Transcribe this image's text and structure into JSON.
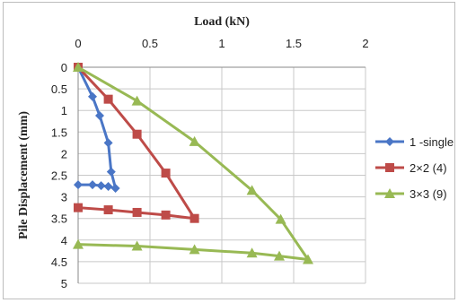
{
  "chart_data": {
    "type": "line",
    "title": "",
    "xlabel": "Load (kN)",
    "ylabel": "Pile Displacement (mm)",
    "x_axis_position": "top",
    "y_axis_inverted": true,
    "xlim": [
      0,
      2
    ],
    "ylim": [
      0,
      5
    ],
    "xticks": [
      0,
      0.5,
      1,
      1.5,
      2
    ],
    "xtick_labels": [
      "0",
      "0.5",
      "1",
      "1.5",
      "2"
    ],
    "yticks": [
      0,
      0.5,
      1,
      1.5,
      2,
      2.5,
      3,
      3.5,
      4,
      4.5,
      5
    ],
    "ytick_labels": [
      "0",
      "0.5",
      "1",
      "1.5",
      "2",
      "2.5",
      "3",
      "3.5",
      "4",
      "4.5",
      "5"
    ],
    "grid": true,
    "legend_position": "right",
    "series": [
      {
        "name": "1 -single",
        "color": "#4a76c6",
        "marker": "diamond",
        "points": [
          [
            0,
            0
          ],
          [
            0.1,
            0.68
          ],
          [
            0.15,
            1.12
          ],
          [
            0.21,
            1.75
          ],
          [
            0.23,
            2.42
          ],
          [
            0.26,
            2.8
          ],
          [
            0.21,
            2.76
          ],
          [
            0.16,
            2.74
          ],
          [
            0.1,
            2.72
          ],
          [
            0,
            2.72
          ]
        ]
      },
      {
        "name": "2×2 (4)",
        "color": "#be4b48",
        "marker": "square",
        "points": [
          [
            0,
            0
          ],
          [
            0.21,
            0.74
          ],
          [
            0.41,
            1.55
          ],
          [
            0.61,
            2.45
          ],
          [
            0.81,
            3.5
          ],
          [
            0.61,
            3.42
          ],
          [
            0.41,
            3.36
          ],
          [
            0.21,
            3.3
          ],
          [
            0,
            3.25
          ]
        ]
      },
      {
        "name": "3×3 (9)",
        "color": "#98b954",
        "marker": "triangle",
        "points": [
          [
            0,
            0
          ],
          [
            0.41,
            0.78
          ],
          [
            0.81,
            1.72
          ],
          [
            1.21,
            2.85
          ],
          [
            1.41,
            3.52
          ],
          [
            1.6,
            4.45
          ],
          [
            1.4,
            4.37
          ],
          [
            1.21,
            4.3
          ],
          [
            0.81,
            4.22
          ],
          [
            0.41,
            4.14
          ],
          [
            0,
            4.1
          ]
        ]
      }
    ]
  }
}
